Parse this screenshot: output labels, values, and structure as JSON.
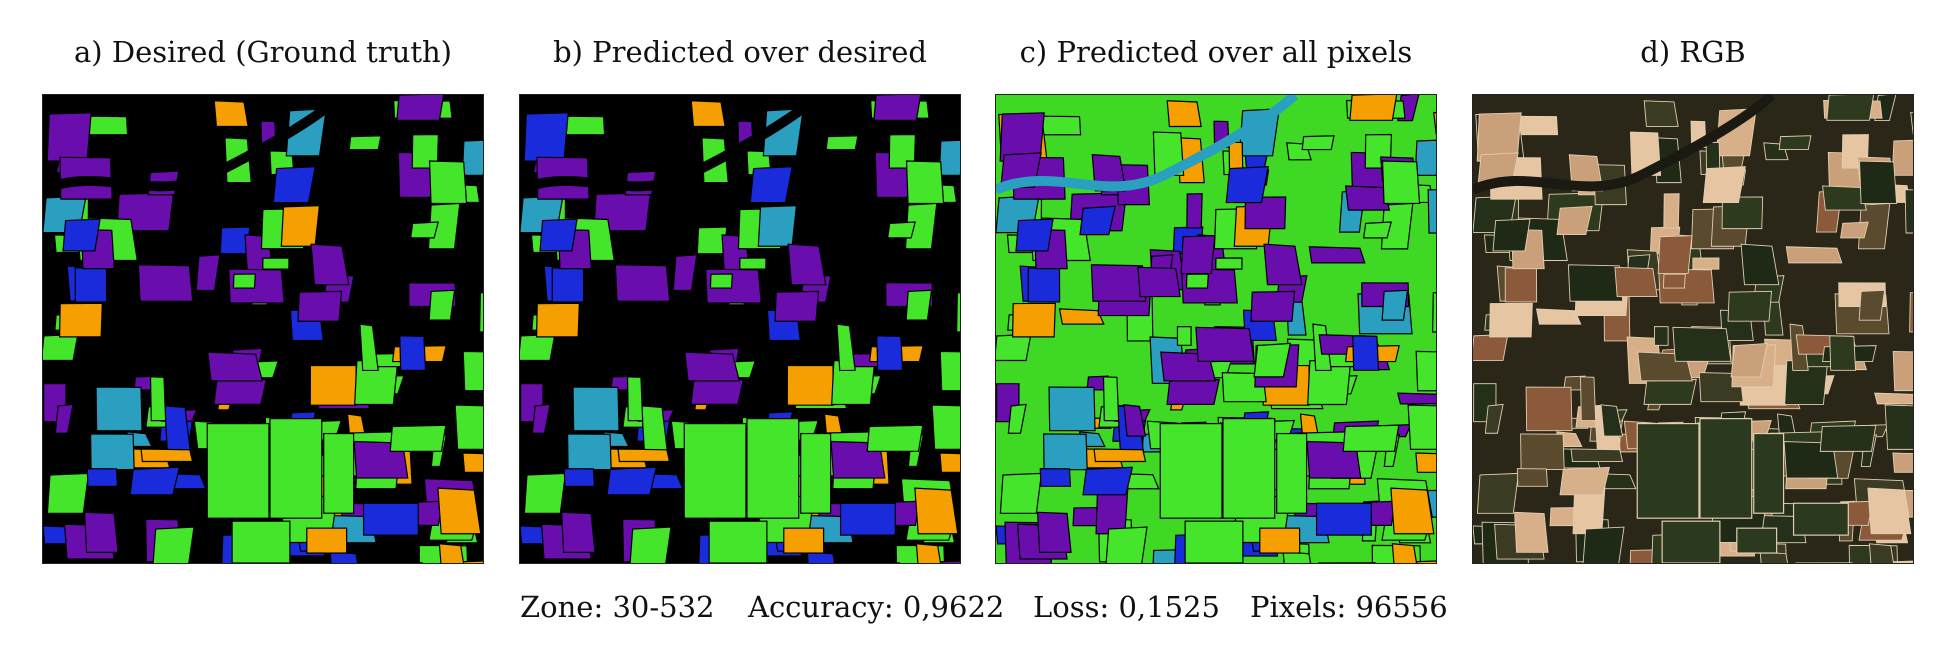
{
  "panels": [
    {
      "title": "a) Desired (Ground truth)"
    },
    {
      "title": "b) Predicted over desired"
    },
    {
      "title": "c) Predicted over all pixels"
    },
    {
      "title": "d) RGB"
    }
  ],
  "stats": {
    "zone": "Zone: 30-532",
    "accuracy": "Accuracy: 0,9622",
    "loss": "Loss: 0,1525",
    "pixels": "Pixels: 96556"
  },
  "colors": {
    "purple": "#6a0dad",
    "green": "#44e52a",
    "blue": "#1a2bdc",
    "orange": "#f5a000",
    "teal": "#2a9fc0",
    "background": "#000000"
  }
}
